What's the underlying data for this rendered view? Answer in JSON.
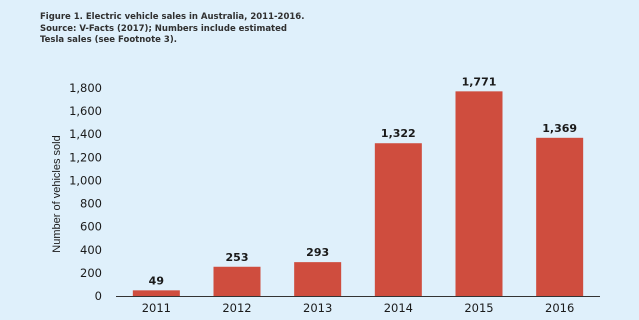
{
  "caption": {
    "line1": "Figure 1. Electric vehicle sales in Australia, 2011-2016.",
    "line2": "Source: V-Facts (2017); Numbers include estimated",
    "line3": "Tesla sales (see Footnote 3)."
  },
  "colors": {
    "bar": "#cf4d3e",
    "background": "#dff0fb",
    "axis": "#333333"
  },
  "chart_data": {
    "type": "bar",
    "categories": [
      "2011",
      "2012",
      "2013",
      "2014",
      "2015",
      "2016"
    ],
    "values": [
      49,
      253,
      293,
      1322,
      1771,
      1369
    ],
    "data_labels": [
      "49",
      "253",
      "293",
      "1,322",
      "1,771",
      "1,369"
    ],
    "ylabel": "Number of vehicles sold",
    "ylim": [
      0,
      1800
    ],
    "yticks": [
      0,
      200,
      400,
      600,
      800,
      1000,
      1200,
      1400,
      1600,
      1800
    ],
    "ytick_labels": [
      "0",
      "200",
      "400",
      "600",
      "800",
      "1,000",
      "1,200",
      "1,400",
      "1,600",
      "1,800"
    ],
    "grid": false,
    "legend": "none"
  }
}
